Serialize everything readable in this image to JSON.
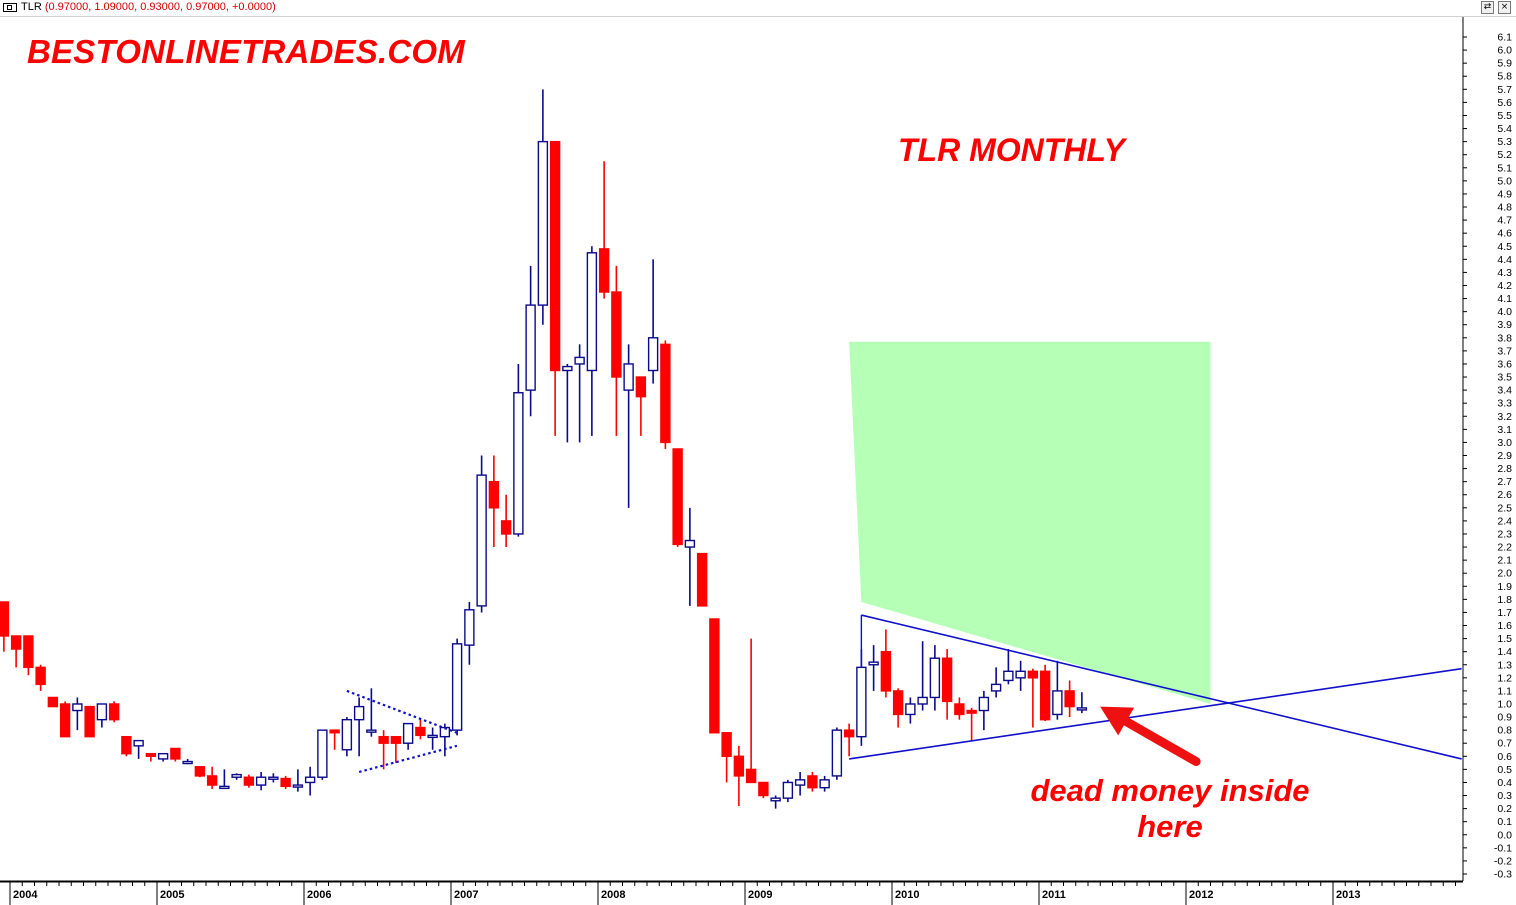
{
  "header": {
    "symbol": "TLR",
    "ohlc": "(0.97000, 1.09000, 0.93000, 0.97000, +0.0000)",
    "window_buttons": [
      "⇄",
      "×"
    ]
  },
  "watermark": "BESTONLINETRADES.COM",
  "annotations": {
    "title": "TLR MONTHLY",
    "note_line1": "dead money inside",
    "note_line2": "here"
  },
  "colors": {
    "up": "#0a0a8c",
    "down": "#ff0000",
    "trendline": "#1010cc",
    "target_zone": "#b6ffb6",
    "arrow": "#ee1111"
  },
  "chart_data": {
    "type": "candlestick",
    "interval": "monthly",
    "ylim": [
      -0.3,
      6.1
    ],
    "yticks": [
      -0.3,
      -0.2,
      -0.1,
      0.0,
      0.1,
      0.2,
      0.3,
      0.4,
      0.5,
      0.6,
      0.7,
      0.8,
      0.9,
      1.0,
      1.1,
      1.2,
      1.3,
      1.4,
      1.5,
      1.6,
      1.7,
      1.8,
      1.9,
      2.0,
      2.1,
      2.2,
      2.3,
      2.4,
      2.5,
      2.6,
      2.7,
      2.8,
      2.9,
      3.0,
      3.1,
      3.2,
      3.3,
      3.4,
      3.5,
      3.6,
      3.7,
      3.8,
      3.9,
      4.0,
      4.1,
      4.2,
      4.3,
      4.4,
      4.5,
      4.6,
      4.7,
      4.8,
      4.9,
      5.0,
      5.1,
      5.2,
      5.3,
      5.4,
      5.5,
      5.6,
      5.7,
      5.8,
      5.9,
      6.0,
      6.1
    ],
    "xticks": [
      "2004",
      "2005",
      "2006",
      "2007",
      "2008",
      "2009",
      "2010",
      "2011",
      "2012",
      "2013"
    ],
    "xtick_dates": [
      "2004-01",
      "2005-01",
      "2006-01",
      "2007-01",
      "2008-01",
      "2009-01",
      "2010-01",
      "2011-01",
      "2012-01",
      "2013-01"
    ],
    "candles": [
      {
        "d": "2003-12",
        "o": 1.78,
        "h": 1.78,
        "l": 1.4,
        "c": 1.52
      },
      {
        "d": "2004-01",
        "o": 1.52,
        "h": 1.52,
        "l": 1.28,
        "c": 1.42
      },
      {
        "d": "2004-02",
        "o": 1.52,
        "h": 1.52,
        "l": 1.22,
        "c": 1.28
      },
      {
        "d": "2004-03",
        "o": 1.28,
        "h": 1.3,
        "l": 1.1,
        "c": 1.15
      },
      {
        "d": "2004-04",
        "o": 1.05,
        "h": 1.05,
        "l": 0.98,
        "c": 0.98
      },
      {
        "d": "2004-05",
        "o": 1.0,
        "h": 1.02,
        "l": 0.75,
        "c": 0.75
      },
      {
        "d": "2004-06",
        "o": 0.95,
        "h": 1.05,
        "l": 0.8,
        "c": 1.0
      },
      {
        "d": "2004-07",
        "o": 0.98,
        "h": 0.98,
        "l": 0.75,
        "c": 0.75
      },
      {
        "d": "2004-08",
        "o": 0.88,
        "h": 1.0,
        "l": 0.82,
        "c": 1.0
      },
      {
        "d": "2004-09",
        "o": 1.0,
        "h": 1.02,
        "l": 0.86,
        "c": 0.88
      },
      {
        "d": "2004-10",
        "o": 0.75,
        "h": 0.75,
        "l": 0.6,
        "c": 0.62
      },
      {
        "d": "2004-11",
        "o": 0.68,
        "h": 0.72,
        "l": 0.58,
        "c": 0.72
      },
      {
        "d": "2004-12",
        "o": 0.62,
        "h": 0.62,
        "l": 0.56,
        "c": 0.6
      },
      {
        "d": "2005-01",
        "o": 0.58,
        "h": 0.62,
        "l": 0.56,
        "c": 0.62
      },
      {
        "d": "2005-02",
        "o": 0.66,
        "h": 0.66,
        "l": 0.56,
        "c": 0.58
      },
      {
        "d": "2005-03",
        "o": 0.56,
        "h": 0.58,
        "l": 0.54,
        "c": 0.56
      },
      {
        "d": "2005-04",
        "o": 0.52,
        "h": 0.52,
        "l": 0.44,
        "c": 0.45
      },
      {
        "d": "2005-05",
        "o": 0.45,
        "h": 0.52,
        "l": 0.35,
        "c": 0.38
      },
      {
        "d": "2005-06",
        "o": 0.37,
        "h": 0.5,
        "l": 0.35,
        "c": 0.37
      },
      {
        "d": "2005-07",
        "o": 0.44,
        "h": 0.47,
        "l": 0.42,
        "c": 0.46
      },
      {
        "d": "2005-08",
        "o": 0.44,
        "h": 0.46,
        "l": 0.36,
        "c": 0.38
      },
      {
        "d": "2005-09",
        "o": 0.38,
        "h": 0.48,
        "l": 0.34,
        "c": 0.44
      },
      {
        "d": "2005-10",
        "o": 0.44,
        "h": 0.47,
        "l": 0.4,
        "c": 0.44
      },
      {
        "d": "2005-11",
        "o": 0.43,
        "h": 0.45,
        "l": 0.35,
        "c": 0.37
      },
      {
        "d": "2005-12",
        "o": 0.38,
        "h": 0.5,
        "l": 0.33,
        "c": 0.38
      },
      {
        "d": "2006-01",
        "o": 0.4,
        "h": 0.52,
        "l": 0.3,
        "c": 0.44
      },
      {
        "d": "2006-02",
        "o": 0.44,
        "h": 0.8,
        "l": 0.42,
        "c": 0.8
      },
      {
        "d": "2006-03",
        "o": 0.8,
        "h": 0.8,
        "l": 0.65,
        "c": 0.78
      },
      {
        "d": "2006-04",
        "o": 0.65,
        "h": 0.9,
        "l": 0.6,
        "c": 0.88
      },
      {
        "d": "2006-05",
        "o": 0.88,
        "h": 1.05,
        "l": 0.6,
        "c": 0.98
      },
      {
        "d": "2006-06",
        "o": 0.8,
        "h": 1.12,
        "l": 0.75,
        "c": 0.8
      },
      {
        "d": "2006-07",
        "o": 0.75,
        "h": 0.8,
        "l": 0.5,
        "c": 0.7
      },
      {
        "d": "2006-08",
        "o": 0.75,
        "h": 0.75,
        "l": 0.55,
        "c": 0.7
      },
      {
        "d": "2006-09",
        "o": 0.7,
        "h": 0.85,
        "l": 0.65,
        "c": 0.85
      },
      {
        "d": "2006-10",
        "o": 0.82,
        "h": 0.88,
        "l": 0.73,
        "c": 0.76
      },
      {
        "d": "2006-11",
        "o": 0.76,
        "h": 0.82,
        "l": 0.65,
        "c": 0.76
      },
      {
        "d": "2006-12",
        "o": 0.75,
        "h": 0.85,
        "l": 0.6,
        "c": 0.82
      },
      {
        "d": "2007-01",
        "o": 0.8,
        "h": 1.5,
        "l": 0.76,
        "c": 1.46
      },
      {
        "d": "2007-02",
        "o": 1.45,
        "h": 1.78,
        "l": 1.3,
        "c": 1.72
      },
      {
        "d": "2007-03",
        "o": 1.75,
        "h": 2.9,
        "l": 1.7,
        "c": 2.75
      },
      {
        "d": "2007-04",
        "o": 2.7,
        "h": 2.9,
        "l": 2.2,
        "c": 2.5
      },
      {
        "d": "2007-05",
        "o": 2.4,
        "h": 2.6,
        "l": 2.2,
        "c": 2.3
      },
      {
        "d": "2007-06",
        "o": 2.3,
        "h": 3.6,
        "l": 2.28,
        "c": 3.38
      },
      {
        "d": "2007-07",
        "o": 3.4,
        "h": 4.35,
        "l": 3.2,
        "c": 4.05
      },
      {
        "d": "2007-08",
        "o": 4.05,
        "h": 5.7,
        "l": 3.9,
        "c": 5.3
      },
      {
        "d": "2007-09",
        "o": 5.3,
        "h": 5.3,
        "l": 3.05,
        "c": 3.55
      },
      {
        "d": "2007-10",
        "o": 3.55,
        "h": 3.6,
        "l": 3.0,
        "c": 3.58
      },
      {
        "d": "2007-11",
        "o": 3.6,
        "h": 3.75,
        "l": 3.0,
        "c": 3.65
      },
      {
        "d": "2007-12",
        "o": 3.55,
        "h": 4.5,
        "l": 3.05,
        "c": 4.45
      },
      {
        "d": "2008-01",
        "o": 4.48,
        "h": 5.15,
        "l": 4.1,
        "c": 4.15
      },
      {
        "d": "2008-02",
        "o": 4.15,
        "h": 4.35,
        "l": 3.05,
        "c": 3.5
      },
      {
        "d": "2008-03",
        "o": 3.4,
        "h": 3.75,
        "l": 2.5,
        "c": 3.6
      },
      {
        "d": "2008-04",
        "o": 3.5,
        "h": 3.5,
        "l": 3.05,
        "c": 3.35
      },
      {
        "d": "2008-05",
        "o": 3.55,
        "h": 4.4,
        "l": 3.45,
        "c": 3.8
      },
      {
        "d": "2008-06",
        "o": 3.75,
        "h": 3.78,
        "l": 2.95,
        "c": 3.0
      },
      {
        "d": "2008-07",
        "o": 2.95,
        "h": 2.95,
        "l": 2.2,
        "c": 2.22
      },
      {
        "d": "2008-08",
        "o": 2.2,
        "h": 2.5,
        "l": 1.75,
        "c": 2.25
      },
      {
        "d": "2008-09",
        "o": 2.15,
        "h": 2.15,
        "l": 1.75,
        "c": 1.75
      },
      {
        "d": "2008-10",
        "o": 1.65,
        "h": 1.65,
        "l": 0.78,
        "c": 0.78
      },
      {
        "d": "2008-11",
        "o": 0.78,
        "h": 0.78,
        "l": 0.4,
        "c": 0.6
      },
      {
        "d": "2008-12",
        "o": 0.6,
        "h": 0.68,
        "l": 0.22,
        "c": 0.45
      },
      {
        "d": "2009-01",
        "o": 0.5,
        "h": 1.5,
        "l": 0.4,
        "c": 0.4
      },
      {
        "d": "2009-02",
        "o": 0.4,
        "h": 0.4,
        "l": 0.28,
        "c": 0.3
      },
      {
        "d": "2009-03",
        "o": 0.26,
        "h": 0.3,
        "l": 0.2,
        "c": 0.28
      },
      {
        "d": "2009-04",
        "o": 0.28,
        "h": 0.42,
        "l": 0.25,
        "c": 0.4
      },
      {
        "d": "2009-05",
        "o": 0.38,
        "h": 0.48,
        "l": 0.3,
        "c": 0.42
      },
      {
        "d": "2009-06",
        "o": 0.45,
        "h": 0.48,
        "l": 0.33,
        "c": 0.36
      },
      {
        "d": "2009-07",
        "o": 0.36,
        "h": 0.45,
        "l": 0.33,
        "c": 0.42
      },
      {
        "d": "2009-08",
        "o": 0.45,
        "h": 0.82,
        "l": 0.42,
        "c": 0.8
      },
      {
        "d": "2009-09",
        "o": 0.8,
        "h": 0.85,
        "l": 0.6,
        "c": 0.75
      },
      {
        "d": "2009-10",
        "o": 0.75,
        "h": 1.42,
        "l": 0.68,
        "c": 1.28
      },
      {
        "d": "2009-11",
        "o": 1.3,
        "h": 1.45,
        "l": 1.1,
        "c": 1.32
      },
      {
        "d": "2009-12",
        "o": 1.4,
        "h": 1.57,
        "l": 1.05,
        "c": 1.1
      },
      {
        "d": "2010-01",
        "o": 1.1,
        "h": 1.12,
        "l": 0.82,
        "c": 0.92
      },
      {
        "d": "2010-02",
        "o": 0.92,
        "h": 1.05,
        "l": 0.85,
        "c": 1.0
      },
      {
        "d": "2010-03",
        "o": 1.0,
        "h": 1.48,
        "l": 0.95,
        "c": 1.05
      },
      {
        "d": "2010-04",
        "o": 1.05,
        "h": 1.45,
        "l": 0.95,
        "c": 1.35
      },
      {
        "d": "2010-05",
        "o": 1.35,
        "h": 1.42,
        "l": 0.88,
        "c": 1.02
      },
      {
        "d": "2010-06",
        "o": 1.0,
        "h": 1.05,
        "l": 0.88,
        "c": 0.92
      },
      {
        "d": "2010-07",
        "o": 0.95,
        "h": 0.97,
        "l": 0.72,
        "c": 0.93
      },
      {
        "d": "2010-08",
        "o": 0.95,
        "h": 1.1,
        "l": 0.8,
        "c": 1.05
      },
      {
        "d": "2010-09",
        "o": 1.1,
        "h": 1.28,
        "l": 1.05,
        "c": 1.15
      },
      {
        "d": "2010-10",
        "o": 1.18,
        "h": 1.42,
        "l": 1.15,
        "c": 1.25
      },
      {
        "d": "2010-11",
        "o": 1.2,
        "h": 1.33,
        "l": 1.1,
        "c": 1.25
      },
      {
        "d": "2010-12",
        "o": 1.25,
        "h": 1.27,
        "l": 0.82,
        "c": 1.2
      },
      {
        "d": "2011-01",
        "o": 1.25,
        "h": 1.3,
        "l": 0.87,
        "c": 0.88
      },
      {
        "d": "2011-02",
        "o": 0.92,
        "h": 1.33,
        "l": 0.88,
        "c": 1.1
      },
      {
        "d": "2011-03",
        "o": 1.1,
        "h": 1.18,
        "l": 0.9,
        "c": 0.98
      },
      {
        "d": "2011-04",
        "o": 0.97,
        "h": 1.09,
        "l": 0.93,
        "c": 0.97
      }
    ],
    "trendlines": [
      {
        "name": "upper",
        "from": {
          "d": "2009-10",
          "v": 1.68
        },
        "to": {
          "d": "2013-11",
          "v": 0.58
        }
      },
      {
        "name": "lower",
        "from": {
          "d": "2009-09",
          "v": 0.58
        },
        "to": {
          "d": "2013-11",
          "v": 1.27
        }
      }
    ],
    "pattern_2006": {
      "upper": [
        {
          "d": "2006-04",
          "v": 1.1
        },
        {
          "d": "2006-12",
          "v": 0.78
        }
      ],
      "lower": [
        {
          "d": "2006-05",
          "v": 0.48
        },
        {
          "d": "2006-12",
          "v": 0.68
        }
      ]
    },
    "target_zone": [
      {
        "d": "2009-09",
        "v": 3.77
      },
      {
        "d": "2012-03",
        "v": 3.77
      },
      {
        "d": "2012-03",
        "v": 1.0
      },
      {
        "d": "2009-10",
        "v": 1.78
      }
    ],
    "arrow": {
      "tail": {
        "d": "2012-01",
        "v": 0.56
      },
      "head": {
        "d": "2011-05",
        "v": 0.98
      }
    }
  }
}
